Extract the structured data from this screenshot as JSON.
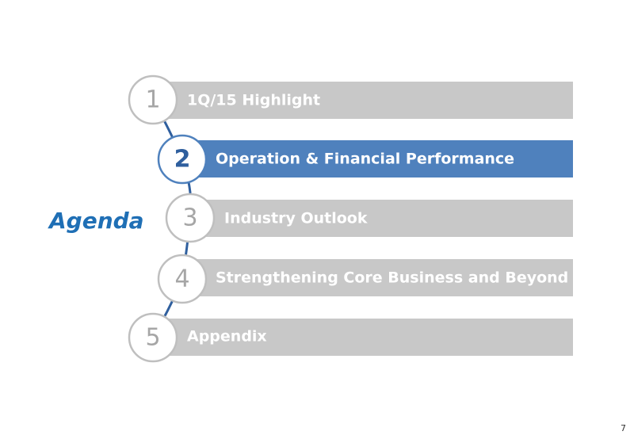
{
  "title": "Agenda",
  "items": [
    {
      "number": "1",
      "label": "1Q/15 Highlight"
    },
    {
      "number": "2",
      "label": "Operation & Financial Performance"
    },
    {
      "number": "3",
      "label": "Industry Outlook"
    },
    {
      "number": "4",
      "label": "Strengthening Core Business and Beyond"
    },
    {
      "number": "5",
      "label": "Appendix"
    }
  ],
  "page_number": "7"
}
